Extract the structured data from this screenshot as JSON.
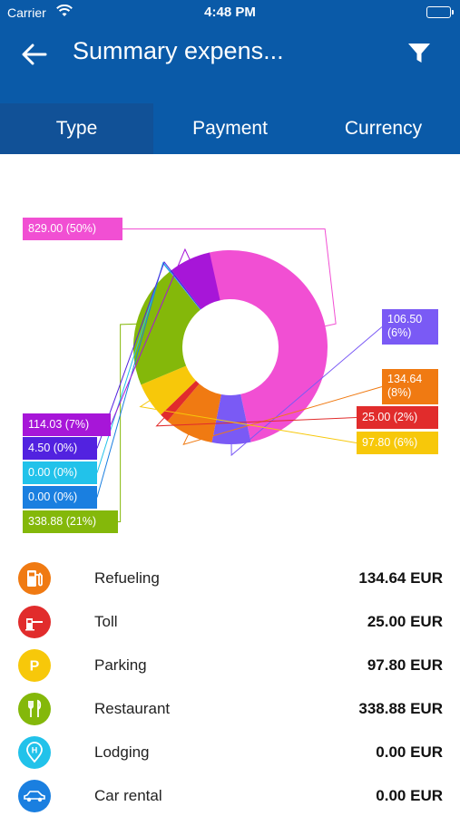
{
  "status": {
    "carrier": "Carrier",
    "time": "4:48 PM"
  },
  "header": {
    "title": "Summary expens..."
  },
  "tabs": [
    {
      "label": "Type",
      "active": true
    },
    {
      "label": "Payment",
      "active": false
    },
    {
      "label": "Currency",
      "active": false
    }
  ],
  "colors": {
    "primary": "#0a5aa8",
    "tab_active": "#115197"
  },
  "chart_data": {
    "type": "pie",
    "donut": true,
    "slices": [
      {
        "label": "829.00 (50%)",
        "value": 829.0,
        "color": "#f14fd3"
      },
      {
        "label": "106.50 (6%)",
        "value": 106.5,
        "color": "#7a5af5"
      },
      {
        "label": "134.64 (8%)",
        "value": 134.64,
        "color": "#f07a12"
      },
      {
        "label": "25.00 (2%)",
        "value": 25.0,
        "color": "#e12c2c"
      },
      {
        "label": "97.80 (6%)",
        "value": 97.8,
        "color": "#f7c80a"
      },
      {
        "label": "338.88 (21%)",
        "value": 338.88,
        "color": "#84b80a"
      },
      {
        "label": "0.00 (0%)",
        "value": 0.0,
        "color": "#1a7fe0"
      },
      {
        "label": "0.00 (0%)",
        "value": 0.0,
        "color": "#22c2ea"
      },
      {
        "label": "4.50 (0%)",
        "value": 4.5,
        "color": "#5222e0"
      },
      {
        "label": "114.03 (7%)",
        "value": 114.03,
        "color": "#a716d8"
      }
    ]
  },
  "expenses": [
    {
      "name": "Refueling",
      "amount": "134.64 EUR",
      "icon": "fuel-pump-icon",
      "color": "#f07a12"
    },
    {
      "name": "Toll",
      "amount": "25.00 EUR",
      "icon": "toll-booth-icon",
      "color": "#e12c2c"
    },
    {
      "name": "Parking",
      "amount": "97.80 EUR",
      "icon": "parking-icon",
      "color": "#f7c80a"
    },
    {
      "name": "Restaurant",
      "amount": "338.88 EUR",
      "icon": "fork-knife-icon",
      "color": "#84b80a"
    },
    {
      "name": "Lodging",
      "amount": "0.00 EUR",
      "icon": "hotel-pin-icon",
      "color": "#22c2ea"
    },
    {
      "name": "Car rental",
      "amount": "0.00 EUR",
      "icon": "car-icon",
      "color": "#1a7fe0"
    }
  ]
}
